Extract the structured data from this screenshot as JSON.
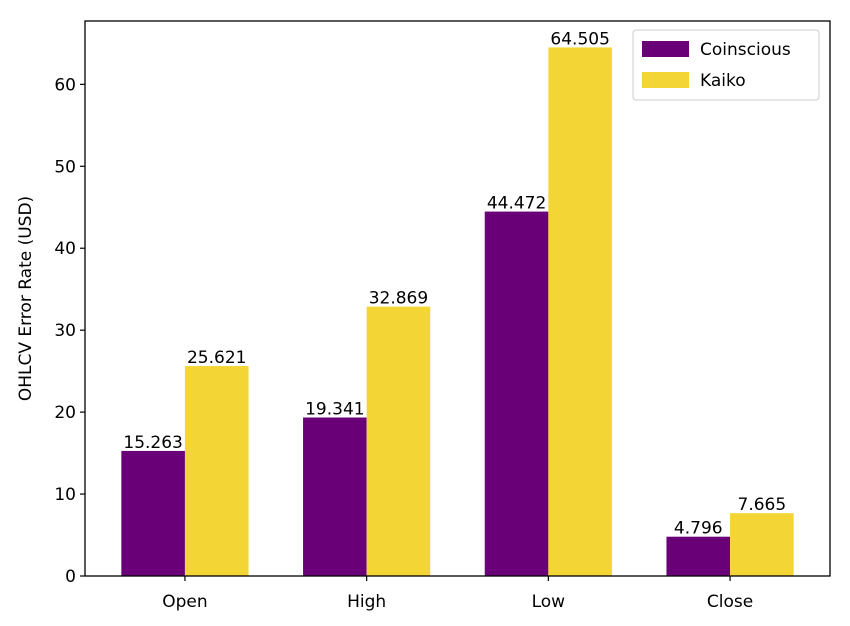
{
  "chart_data": {
    "type": "bar",
    "title": "",
    "xlabel": "",
    "ylabel": "OHLCV Error Rate (USD)",
    "categories": [
      "Open",
      "High",
      "Low",
      "Close"
    ],
    "series": [
      {
        "name": "Coinscious",
        "color": "#6a0078",
        "values": [
          15.263,
          19.341,
          44.472,
          4.796
        ],
        "labels": [
          "15.263",
          "19.341",
          "44.472",
          "4.796"
        ]
      },
      {
        "name": "Kaiko",
        "color": "#f3d535",
        "values": [
          25.621,
          32.869,
          64.505,
          7.665
        ],
        "labels": [
          "25.621",
          "32.869",
          "64.505",
          "7.665"
        ]
      }
    ],
    "ylim": [
      0,
      67.73
    ],
    "yticks": [
      0,
      10,
      20,
      30,
      40,
      50,
      60
    ],
    "ytick_labels": [
      "0",
      "10",
      "20",
      "30",
      "40",
      "50",
      "60"
    ],
    "grid": false,
    "legend_position": "top-right"
  }
}
